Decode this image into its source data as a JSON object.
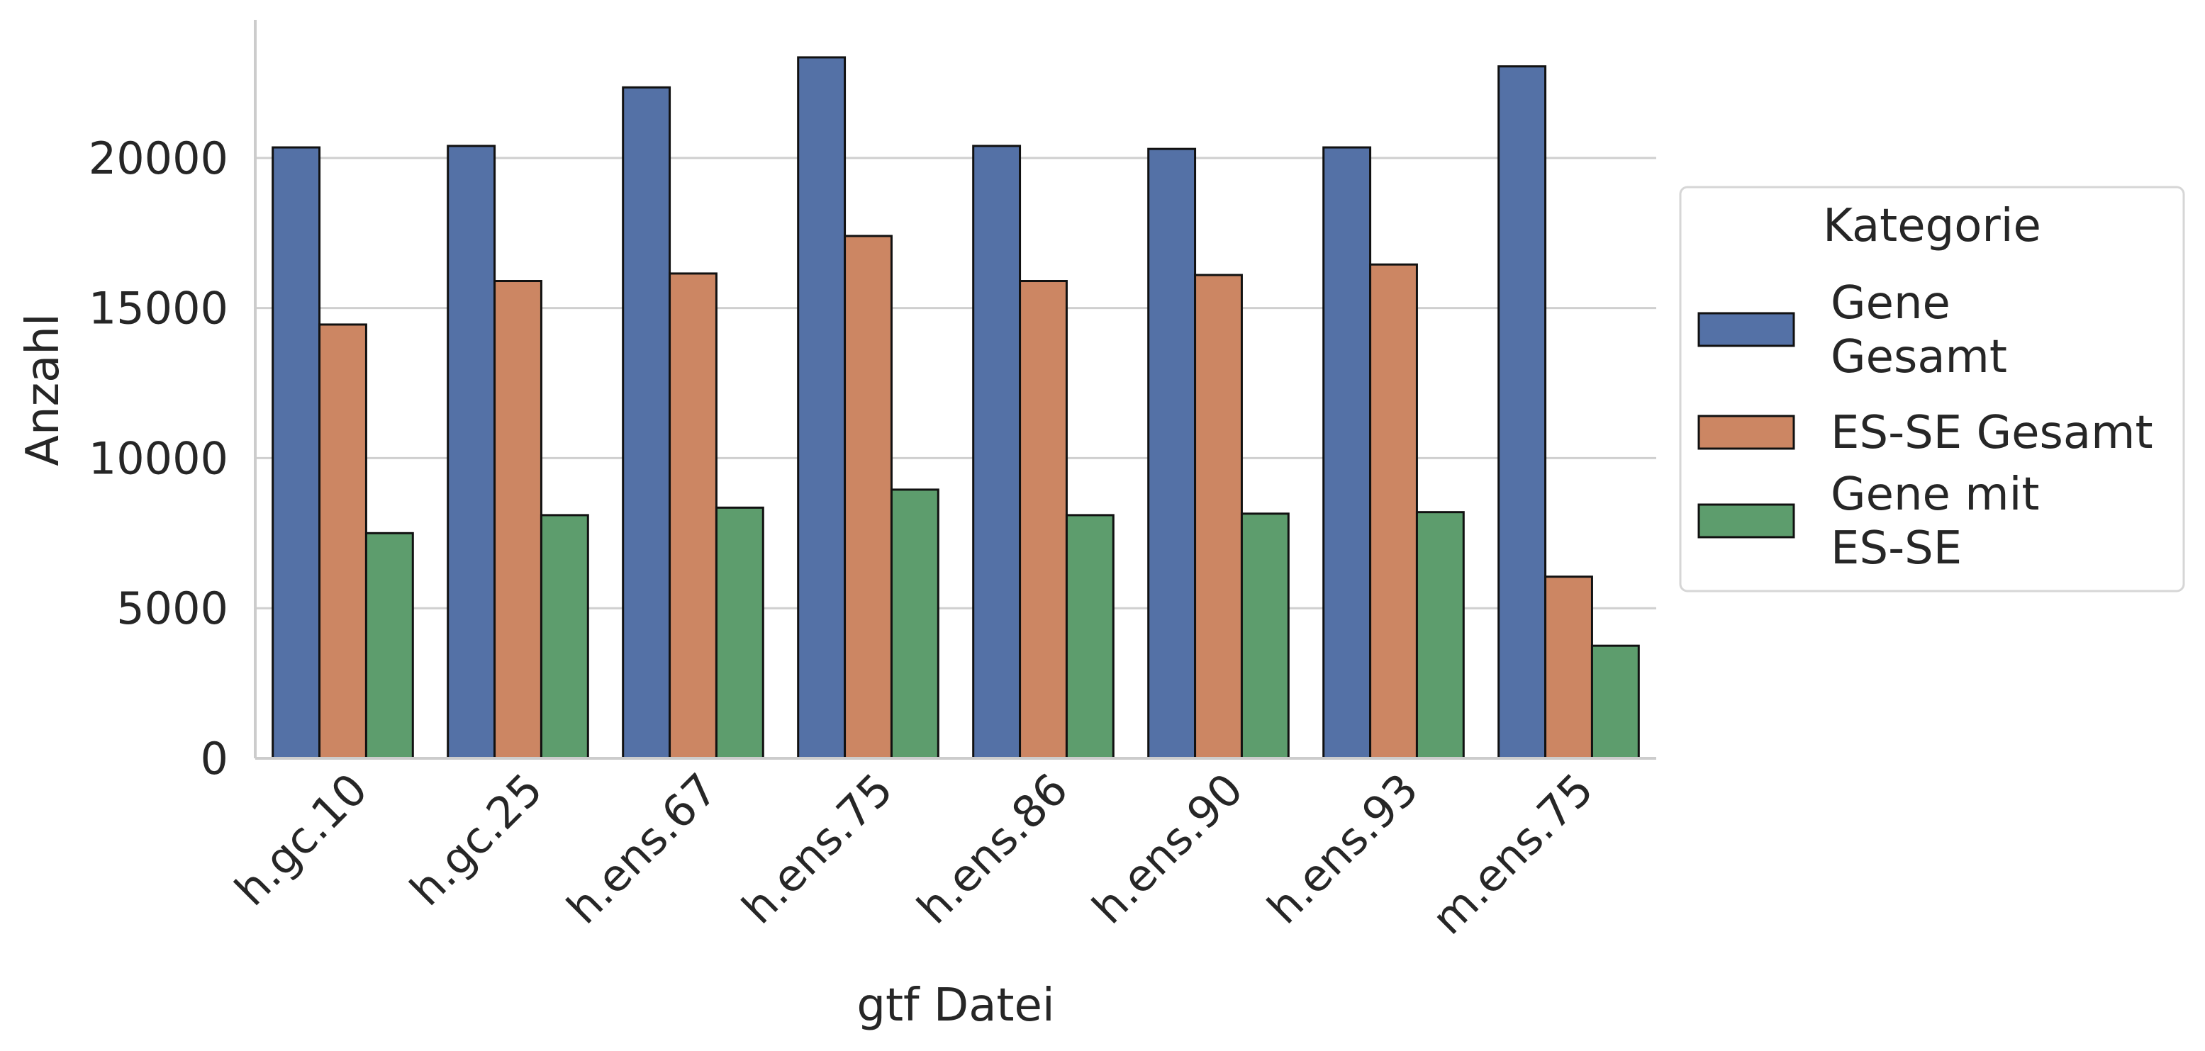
{
  "chart_data": {
    "type": "bar",
    "title": "",
    "xlabel": "gtf Datei",
    "ylabel": "Anzahl",
    "categories": [
      "h.gc.10",
      "h.gc.25",
      "h.ens.67",
      "h.ens.75",
      "h.ens.86",
      "h.ens.90",
      "h.ens.93",
      "m.ens.75"
    ],
    "series": [
      {
        "name": "Gene\nGesamt",
        "color": "#5471a6",
        "values": [
          20350,
          20400,
          22350,
          23350,
          20400,
          20300,
          20350,
          23050
        ]
      },
      {
        "name": "ES-SE Gesamt",
        "color": "#cc8663",
        "values": [
          14450,
          15900,
          16150,
          17400,
          15900,
          16100,
          16450,
          6050
        ]
      },
      {
        "name": "Gene mit\nES-SE",
        "color": "#5d9d6d",
        "values": [
          7500,
          8100,
          8350,
          8950,
          8100,
          8150,
          8200,
          3750
        ]
      }
    ],
    "ylim": [
      0,
      24600
    ],
    "yticks": [
      0,
      5000,
      10000,
      15000,
      20000
    ],
    "grid": "horizontal",
    "legend": {
      "title": "Kategorie",
      "placement": "right"
    }
  }
}
